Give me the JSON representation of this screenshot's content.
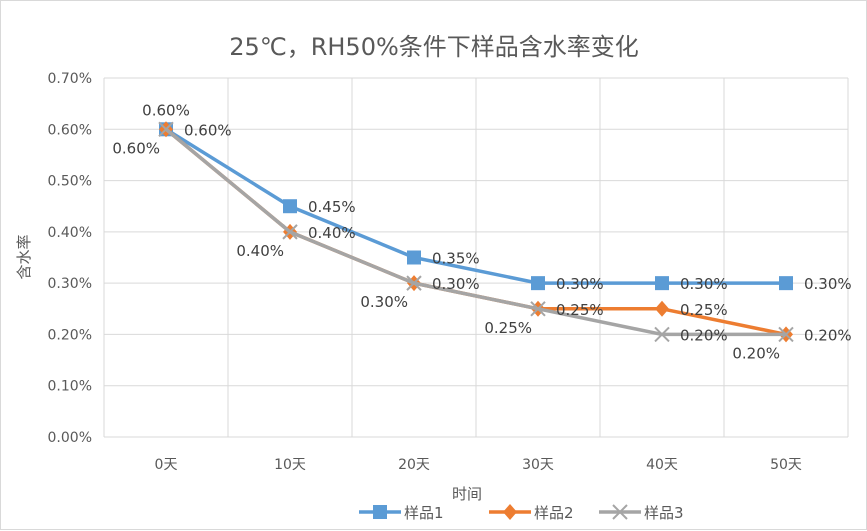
{
  "chart_data": {
    "type": "line",
    "title": "25℃，RH50%条件下样品含水率变化",
    "xlabel": "时间",
    "ylabel": "含水率",
    "categories": [
      "0天",
      "10天",
      "20天",
      "30天",
      "40天",
      "50天"
    ],
    "ylim": [
      0,
      0.7
    ],
    "yticks": [
      "0.00%",
      "0.10%",
      "0.20%",
      "0.30%",
      "0.40%",
      "0.50%",
      "0.60%",
      "0.70%"
    ],
    "grid": true,
    "legend_position": "bottom",
    "series": [
      {
        "name": "样品1",
        "color": "#5b9bd5",
        "marker": "square",
        "values": [
          0.6,
          0.45,
          0.35,
          0.3,
          0.3,
          0.3
        ],
        "labels": [
          "0.60%",
          "0.45%",
          "0.35%",
          "0.30%",
          "0.30%",
          "0.30%"
        ]
      },
      {
        "name": "样品2",
        "color": "#ed7d31",
        "marker": "diamond",
        "values": [
          0.6,
          0.4,
          0.3,
          0.25,
          0.25,
          0.2
        ],
        "labels": [
          "0.60%",
          "0.40%",
          "0.30%",
          "0.25%",
          "0.25%",
          "0.20%"
        ]
      },
      {
        "name": "样品3",
        "color": "#a5a5a5",
        "marker": "x",
        "values": [
          0.6,
          0.4,
          0.3,
          0.25,
          0.2,
          0.2
        ],
        "labels": [
          "0.60%",
          "0.40%",
          "0.30%",
          "0.25%",
          "0.20%",
          "0.20%"
        ]
      }
    ]
  }
}
